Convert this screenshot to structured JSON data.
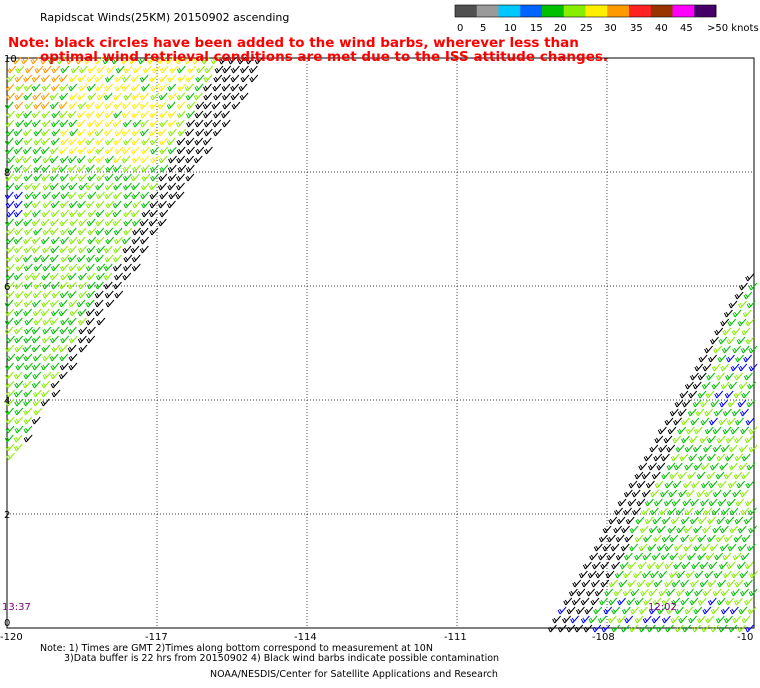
{
  "header": {
    "title": "Rapidscat Winds(25KM) 20150902 ascending",
    "note_line1": "Note: black circles have been added to the wind barbs, wherever less than",
    "note_line2": "optimal wind retrieval conditions are met due to the ISS attitude changes."
  },
  "legend": {
    "ticks": [
      "0",
      "5",
      "10",
      "15",
      "20",
      "25",
      "30",
      "35",
      "40",
      "45",
      ">50 knots"
    ],
    "colors": [
      "#505050",
      "#9a9a9a",
      "#00c8ff",
      "#0064ff",
      "#00c000",
      "#88ee00",
      "#ffee00",
      "#ff9900",
      "#ff2222",
      "#993300",
      "#ff00ff",
      "#440066"
    ]
  },
  "axes": {
    "x_labels": [
      "-120",
      "-117",
      "-114",
      "-111",
      "-108",
      "-10"
    ],
    "y_labels": [
      "10",
      "8",
      "6",
      "4",
      "2",
      "0"
    ]
  },
  "pass_times": {
    "left": "13:37",
    "right": "12:02"
  },
  "footnotes": {
    "line1": "Note: 1) Times are GMT 2)Times along bottom correspond to measurement at 10N",
    "line2": "3)Data buffer is 22 hrs from 20150902 4) Black wind barbs indicate possible contamination",
    "credit": "NOAA/NESDIS/Center for Satellite Applications and Research"
  },
  "colors": {
    "note_text": "#ff0000",
    "time_text": "#800080",
    "grid": "#000000",
    "barb_black": "#000000",
    "barb_green": "#00c000",
    "barb_light_green": "#88ee00",
    "barb_blue": "#0000ff",
    "barb_yellow": "#ffee00",
    "barb_orange": "#ff9900"
  }
}
